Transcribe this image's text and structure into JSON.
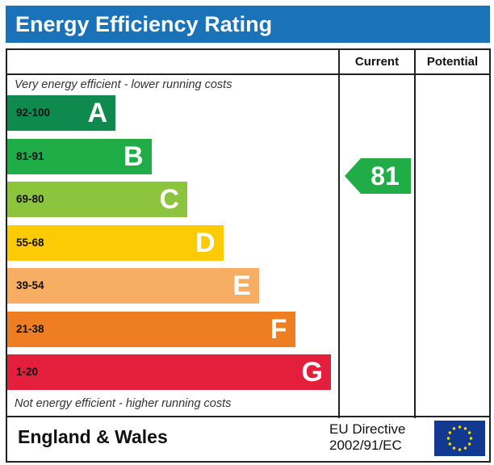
{
  "title": "Energy Efficiency Rating",
  "columns": {
    "current": "Current",
    "potential": "Potential"
  },
  "top_note": "Very energy efficient - lower running costs",
  "bottom_note": "Not energy efficient - higher running costs",
  "chart_data": {
    "type": "bar",
    "title": "Energy Efficiency Rating",
    "bands": [
      {
        "range": "92-100",
        "letter": "A",
        "color": "#0f8a4f"
      },
      {
        "range": "81-91",
        "letter": "B",
        "color": "#20ad48"
      },
      {
        "range": "69-80",
        "letter": "C",
        "color": "#8dc43d"
      },
      {
        "range": "55-68",
        "letter": "D",
        "color": "#fdcb04"
      },
      {
        "range": "39-54",
        "letter": "E",
        "color": "#f7ae64"
      },
      {
        "range": "21-38",
        "letter": "F",
        "color": "#ef7e22"
      },
      {
        "range": "1-20",
        "letter": "G",
        "color": "#e41f3b"
      }
    ],
    "current": {
      "value": "81",
      "band": "B",
      "color": "#20ad48"
    },
    "potential": null
  },
  "footer": {
    "region": "England & Wales",
    "directive_line1": "EU Directive",
    "directive_line2": "2002/91/EC",
    "flag_icon": "eu-flag-icon"
  }
}
